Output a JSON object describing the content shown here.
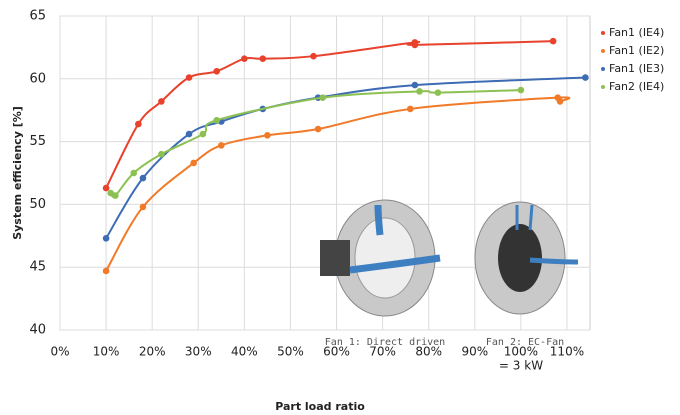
{
  "chart_data": {
    "type": "line",
    "ylabel": "System efficiency [%]",
    "xlabel": "Part load ratio",
    "annotations": [
      "= 3 kW",
      "Fan 1: Direct driven",
      "Fan 2: EC-Fan"
    ],
    "xlim": [
      0,
      115
    ],
    "ylim": [
      40,
      65
    ],
    "xticks": [
      {
        "value": 0,
        "label": "0%"
      },
      {
        "value": 10,
        "label": "10%"
      },
      {
        "value": 20,
        "label": "20%"
      },
      {
        "value": 30,
        "label": "30%"
      },
      {
        "value": 40,
        "label": "40%"
      },
      {
        "value": 50,
        "label": "50%"
      },
      {
        "value": 60,
        "label": "60%"
      },
      {
        "value": 70,
        "label": "70%"
      },
      {
        "value": 80,
        "label": "80%"
      },
      {
        "value": 90,
        "label": "90%"
      },
      {
        "value": 100,
        "label": "100%"
      },
      {
        "value": 110,
        "label": "110%"
      }
    ],
    "yticks": [
      40,
      45,
      50,
      55,
      60,
      65
    ],
    "grid": true,
    "legend": "right",
    "series": [
      {
        "name": "Fan1 (IE4)",
        "color": "#e8412c",
        "x": [
          10,
          17,
          22,
          28,
          34,
          40,
          44,
          55,
          77,
          77,
          107
        ],
        "values": [
          51.3,
          56.4,
          58.2,
          60.1,
          60.6,
          61.6,
          61.6,
          61.8,
          62.9,
          62.7,
          63.0
        ]
      },
      {
        "name": "Fan1 (IE2)",
        "color": "#f07a28",
        "x": [
          10,
          18,
          29,
          35,
          45,
          56,
          76,
          108,
          108.5
        ],
        "values": [
          44.7,
          49.8,
          53.3,
          54.7,
          55.5,
          56.0,
          57.6,
          58.5,
          58.2
        ]
      },
      {
        "name": "Fan1 (IE3)",
        "color": "#3d6cb5",
        "x": [
          10,
          18,
          28,
          35,
          44,
          56,
          77,
          114
        ],
        "values": [
          47.3,
          52.1,
          55.6,
          56.6,
          57.6,
          58.5,
          59.5,
          60.1
        ]
      },
      {
        "name": "Fan2 (IE4)",
        "color": "#8cc152",
        "x": [
          11,
          12,
          16,
          22,
          31,
          34,
          57,
          78,
          82,
          100
        ],
        "values": [
          50.9,
          50.7,
          52.5,
          54.0,
          55.6,
          56.7,
          58.5,
          59.0,
          58.9,
          59.1
        ]
      }
    ]
  }
}
